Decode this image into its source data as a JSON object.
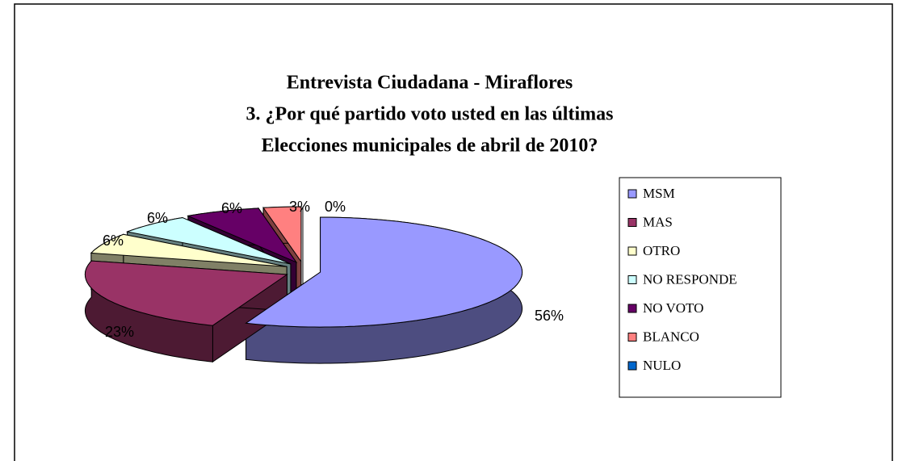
{
  "chart_data": {
    "type": "pie3d",
    "title": [
      "Entrevista Ciudadana - Miraflores",
      "3. ¿Por qué partido voto usted en las últimas",
      "Elecciones municipales de abril de 2010?"
    ],
    "categories": [
      "MSM",
      "MAS",
      "OTRO",
      "NO RESPONDE",
      "NO VOTO",
      "BLANCO",
      "NULO"
    ],
    "values": [
      56,
      23,
      6,
      6,
      6,
      3,
      0
    ],
    "value_labels": [
      "56%",
      "23%",
      "6%",
      "6%",
      "6%",
      "3%",
      "0%"
    ],
    "colors": [
      "#9999ff",
      "#993366",
      "#ffffcc",
      "#ccffff",
      "#660066",
      "#ff8080",
      "#0066cc"
    ],
    "legend": "right"
  }
}
